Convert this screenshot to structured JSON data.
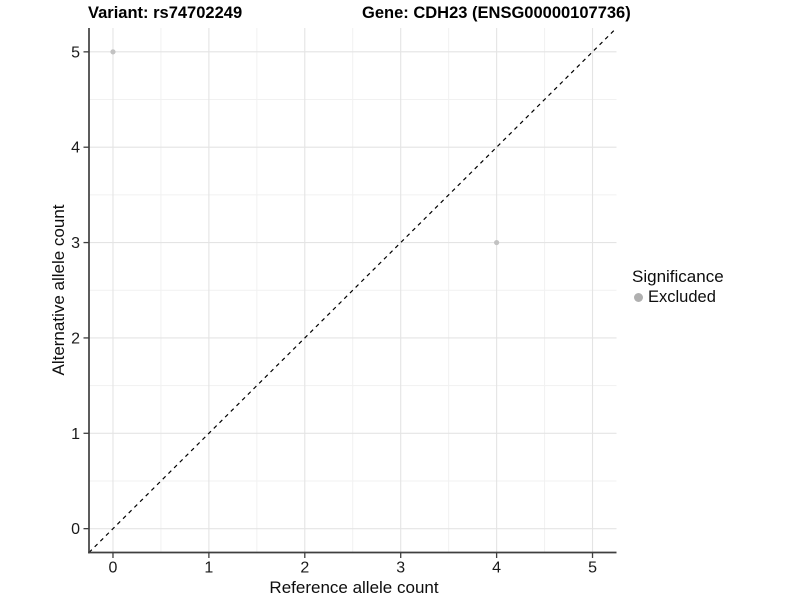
{
  "chart_data": {
    "type": "scatter",
    "titles": {
      "left": "Variant: rs74702249",
      "right": "Gene: CDH23 (ENSG00000107736)"
    },
    "xlabel": "Reference allele count",
    "ylabel": "Alternative allele count",
    "xlim": [
      -0.25,
      5.25
    ],
    "ylim": [
      -0.25,
      5.25
    ],
    "x_ticks": [
      0,
      1,
      2,
      3,
      4,
      5
    ],
    "y_ticks": [
      0,
      1,
      2,
      3,
      4,
      5
    ],
    "x_minor_ticks": [
      0.5,
      1.5,
      2.5,
      3.5,
      4.5
    ],
    "y_minor_ticks": [
      0.5,
      1.5,
      2.5,
      3.5,
      4.5
    ],
    "grid": {
      "show": true,
      "major_color": "#e4e4e4",
      "minor_color": "#f1f1f1"
    },
    "axis_line_color": "#3f3f3f",
    "tick_label_color": "#1a1a1a",
    "series": [
      {
        "name": "Excluded",
        "marker": "circle",
        "color": "#c2c2c2",
        "point_radius": 2.6,
        "points": [
          {
            "x": 0,
            "y": 5
          },
          {
            "x": 4,
            "y": 3
          }
        ]
      }
    ],
    "reference_line": {
      "type": "identity",
      "equation": "y = x",
      "style": "dashed",
      "color": "#000000"
    },
    "legend": {
      "title": "Significance",
      "position": "right",
      "items": [
        {
          "label": "Excluded",
          "marker": "circle",
          "color": "#b0b0b0"
        }
      ]
    }
  }
}
